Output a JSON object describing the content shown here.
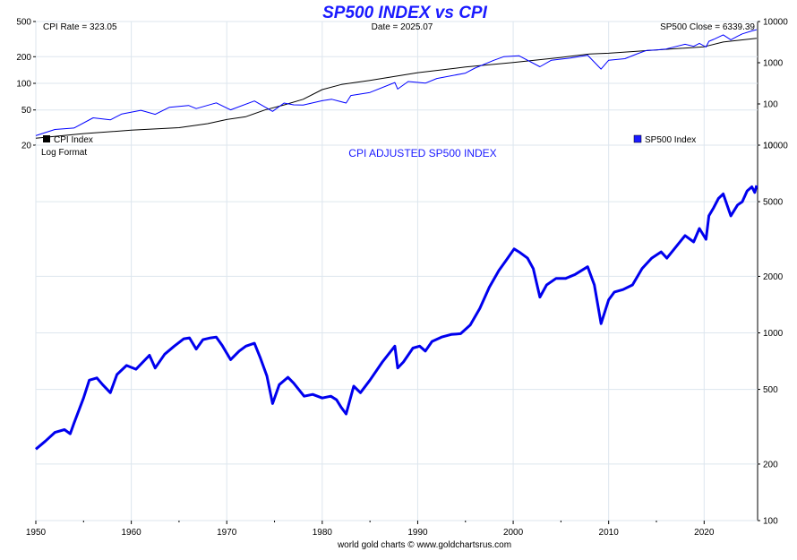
{
  "chart_data": [
    {
      "type": "line",
      "title": "SP500 INDEX vs CPI",
      "annotations": {
        "cpi_rate": "CPI Rate = 323.05",
        "date": "Date = 2025.07",
        "sp_close": "SP500 Close = 6339.39"
      },
      "legend": [
        "CPI Index",
        "SP500 Index"
      ],
      "legend_placement": "bottom",
      "x_ticks": [
        "1950",
        "1960",
        "1970",
        "1980",
        "1990",
        "2000",
        "2010",
        "2020"
      ],
      "xlim": [
        1950,
        2025.6
      ],
      "left_axis": {
        "scale": "log",
        "ticks": [
          "20",
          "50",
          "100",
          "200",
          "500"
        ],
        "ylim": [
          20,
          500
        ]
      },
      "right_axis": {
        "scale": "log",
        "ticks": [
          "10",
          "100",
          "1000",
          "10000"
        ],
        "ylim": [
          10,
          10000
        ]
      },
      "grid": true,
      "colors": {
        "cpi": "#000000",
        "sp500": "#0000ff"
      },
      "series": [
        {
          "name": "CPI Index",
          "axis": "left",
          "x": [
            1950,
            1955,
            1960,
            1965,
            1968,
            1970,
            1972,
            1974,
            1976,
            1978,
            1980,
            1982,
            1985,
            1990,
            1995,
            2000,
            2005,
            2008,
            2010,
            2015,
            2020,
            2022,
            2025.5
          ],
          "values": [
            24,
            27,
            29.5,
            31.5,
            35,
            39,
            42,
            50,
            57,
            66,
            85,
            97,
            108,
            132,
            153,
            172,
            196,
            215,
            219,
            238,
            259,
            293,
            323
          ]
        },
        {
          "name": "SP500 Index",
          "axis": "right",
          "x": [
            1950,
            1952,
            1954,
            1956,
            1957.8,
            1959,
            1961,
            1962.5,
            1964,
            1966,
            1966.8,
            1968.9,
            1970.4,
            1972.9,
            1974.8,
            1976,
            1977,
            1978,
            1980,
            1981,
            1982.5,
            1983,
            1985,
            1987.6,
            1987.9,
            1989,
            1990.8,
            1992,
            1995,
            1996,
            1998,
            1999,
            2000.6,
            2002.8,
            2004,
            2006,
            2007.8,
            2009.2,
            2010,
            2011.7,
            2013,
            2014,
            2015,
            2016,
            2018,
            2018.9,
            2019.5,
            2020.2,
            2020.5,
            2021,
            2022,
            2022.8,
            2023.5,
            2024,
            2025,
            2025.5
          ],
          "values": [
            17,
            24,
            26,
            46,
            41,
            57,
            70,
            56,
            83,
            92,
            77,
            106,
            72,
            118,
            66,
            105,
            95,
            94,
            120,
            130,
            105,
            160,
            190,
            330,
            230,
            350,
            320,
            415,
            560,
            740,
            1150,
            1400,
            1480,
            800,
            1150,
            1300,
            1520,
            700,
            1150,
            1250,
            1650,
            2000,
            2050,
            2150,
            2800,
            2500,
            2950,
            2400,
            3300,
            3700,
            4750,
            3600,
            4400,
            5000,
            5900,
            6339
          ]
        }
      ]
    },
    {
      "type": "line",
      "title": "CPI ADJUSTED SP500 INDEX",
      "annotation": "Log Format",
      "x_ticks": [
        "1950",
        "1960",
        "1970",
        "1980",
        "1990",
        "2000",
        "2010",
        "2020"
      ],
      "xlim": [
        1950,
        2025.6
      ],
      "right_axis": {
        "scale": "log",
        "ticks": [
          "100",
          "200",
          "500",
          "1000",
          "2000",
          "5000",
          "10000"
        ],
        "ylim": [
          100,
          10000
        ]
      },
      "grid": true,
      "colors": {
        "line": "#0000ee"
      },
      "series": [
        {
          "name": "CPI Adjusted SP500",
          "x": [
            1950,
            1951,
            1952,
            1953,
            1953.6,
            1954,
            1955,
            1955.6,
            1956.4,
            1957,
            1957.8,
            1958.5,
            1959.5,
            1960.5,
            1961.9,
            1962.5,
            1963.5,
            1964.5,
            1965.5,
            1966.1,
            1966.8,
            1967.5,
            1968.3,
            1968.9,
            1969.5,
            1970.4,
            1971.3,
            1972,
            1972.9,
            1973.5,
            1974.2,
            1974.8,
            1975.5,
            1976.4,
            1977,
            1978.1,
            1979,
            1980,
            1980.9,
            1981.5,
            1982,
            1982.5,
            1983.3,
            1984,
            1985,
            1986.3,
            1987.6,
            1987.9,
            1988.5,
            1989.5,
            1990.2,
            1990.8,
            1991.5,
            1992.5,
            1993.5,
            1994.5,
            1995.5,
            1996.5,
            1997.5,
            1998.5,
            1999.3,
            2000.1,
            2000.6,
            2001.5,
            2002.1,
            2002.8,
            2003.5,
            2004.5,
            2005.5,
            2006.5,
            2007.8,
            2008.5,
            2009.2,
            2010,
            2010.6,
            2011.5,
            2012.5,
            2013.5,
            2014.5,
            2015.5,
            2016.1,
            2017,
            2018,
            2018.9,
            2019.5,
            2020.2,
            2020.5,
            2021,
            2021.5,
            2022,
            2022.8,
            2023.5,
            2024,
            2024.5,
            2025,
            2025.3,
            2025.5
          ],
          "values": [
            240,
            265,
            295,
            305,
            290,
            330,
            450,
            560,
            575,
            530,
            480,
            600,
            670,
            640,
            760,
            650,
            770,
            850,
            930,
            940,
            820,
            920,
            940,
            950,
            860,
            720,
            800,
            850,
            880,
            740,
            590,
            420,
            530,
            580,
            540,
            460,
            470,
            450,
            460,
            440,
            400,
            370,
            520,
            480,
            560,
            700,
            850,
            650,
            700,
            830,
            850,
            800,
            900,
            950,
            980,
            990,
            1100,
            1350,
            1750,
            2150,
            2450,
            2800,
            2700,
            2500,
            2200,
            1550,
            1800,
            1950,
            1950,
            2050,
            2250,
            1800,
            1120,
            1500,
            1650,
            1700,
            1800,
            2200,
            2500,
            2700,
            2500,
            2850,
            3300,
            3050,
            3600,
            3150,
            4200,
            4650,
            5200,
            5500,
            4200,
            4800,
            5000,
            5700,
            6000,
            5600,
            6100
          ]
        }
      ]
    }
  ],
  "footer": "world gold charts © www.goldchartsrus.com"
}
